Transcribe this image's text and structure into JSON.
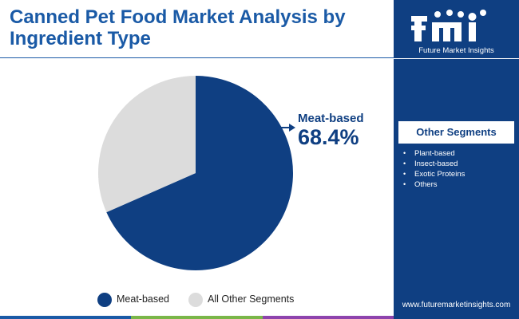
{
  "header": {
    "title": "Canned Pet Food Market Analysis by Ingredient Type"
  },
  "brand": {
    "logo_letters": "fmi",
    "logo_name": "Future Market Insights",
    "url": "www.futuremarketinsights.com"
  },
  "sidebar": {
    "heading": "Other Segments",
    "items": [
      "Plant-based",
      "Insect-based",
      "Exotic Proteins",
      "Others"
    ]
  },
  "callout": {
    "label": "Meat-based",
    "value": "68.4%"
  },
  "colors": {
    "accent": "#0f3f82",
    "title": "#1a5aa6",
    "other": "#dcdcdc",
    "bottom_bar": [
      "#1a5aa6",
      "#7ab648",
      "#8e44ad"
    ]
  },
  "chart_data": {
    "type": "pie",
    "title": "",
    "labels": [
      "Meat-based",
      "All Other Segments"
    ],
    "values": [
      68.4,
      31.6
    ],
    "colors": [
      "#0f3f82",
      "#dcdcdc"
    ],
    "legend_position": "bottom"
  }
}
